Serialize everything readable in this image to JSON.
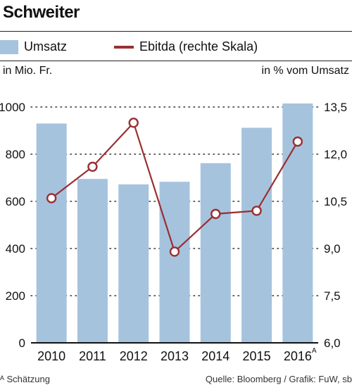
{
  "header": {
    "title": "Schweiter"
  },
  "legend": {
    "bar_label": "Umsatz",
    "line_label": "Ebitda (rechte Skala)"
  },
  "units": {
    "left": "in Mio. Fr.",
    "right": "in % vom Umsatz"
  },
  "footer": {
    "note": "ᴬ Schätzung",
    "source": "Quelle: Bloomberg / Grafik: FuW, sb"
  },
  "colors": {
    "bar": "#a6c3de",
    "line": "#9a2f32"
  },
  "chart_data": {
    "type": "bar",
    "categories": [
      "2010",
      "2011",
      "2012",
      "2013",
      "2014",
      "2015",
      "2016"
    ],
    "category_suffix": [
      "",
      "",
      "",
      "",
      "",
      "",
      "A"
    ],
    "series": [
      {
        "name": "Umsatz",
        "type": "bar",
        "axis": "left",
        "values": [
          930,
          695,
          672,
          683,
          762,
          912,
          1015
        ]
      },
      {
        "name": "Ebitda (rechte Skala)",
        "type": "line",
        "axis": "right",
        "values": [
          10.6,
          11.6,
          13.0,
          8.9,
          10.1,
          10.2,
          12.4
        ]
      }
    ],
    "ylim_left": [
      0,
      1000
    ],
    "yticks_left": [
      "0",
      "200",
      "400",
      "600",
      "800",
      "1000"
    ],
    "ylim_right": [
      6.0,
      13.5
    ],
    "yticks_right": [
      "6,0",
      "7,5",
      "9,0",
      "10,5",
      "12,0",
      "13,5"
    ],
    "grid": "dotted"
  }
}
